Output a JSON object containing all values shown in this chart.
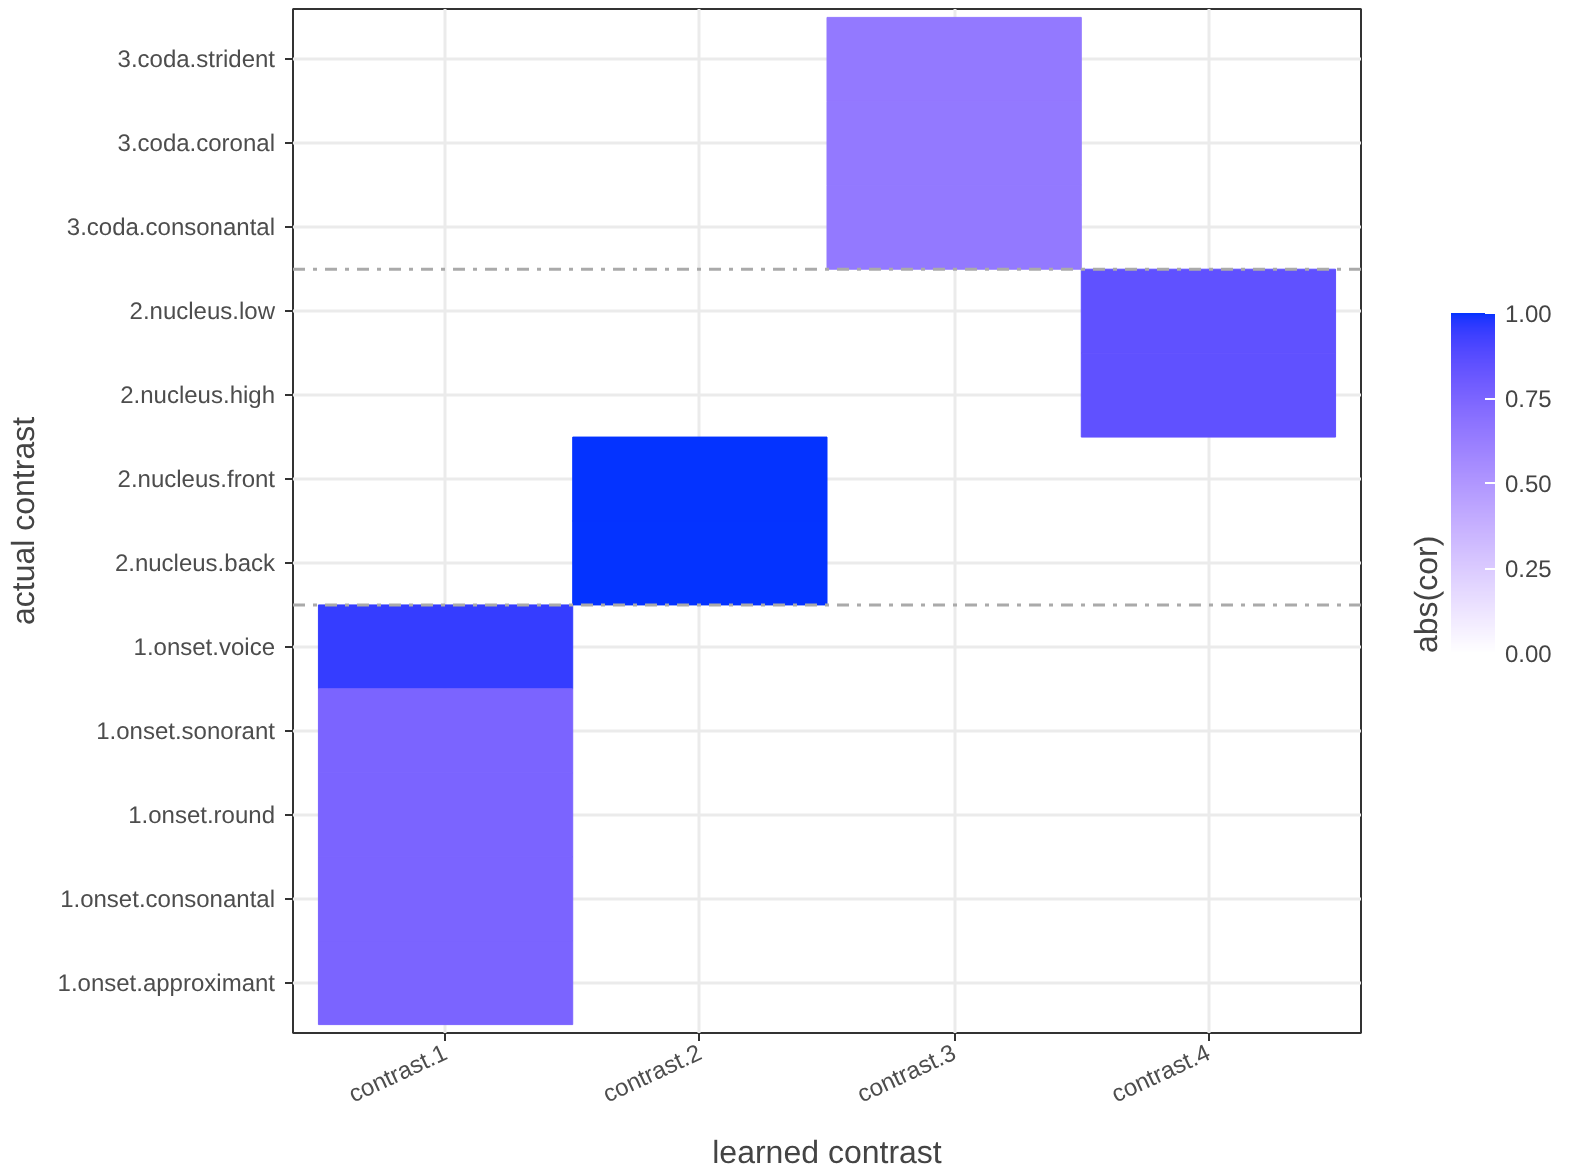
{
  "chart_data": {
    "type": "heatmap",
    "xlabel": "learned contrast",
    "ylabel": "actual contrast",
    "clabel": "abs(cor)",
    "categories": [
      "contrast.1",
      "contrast.2",
      "contrast.3",
      "contrast.4"
    ],
    "y_categories": [
      "3.coda.strident",
      "3.coda.coronal",
      "3.coda.consonantal",
      "2.nucleus.low",
      "2.nucleus.high",
      "2.nucleus.front",
      "2.nucleus.back",
      "1.onset.voice",
      "1.onset.sonorant",
      "1.onset.round",
      "1.onset.consonantal",
      "1.onset.approximant"
    ],
    "cells": [
      [
        null,
        null,
        0.65,
        null
      ],
      [
        null,
        null,
        0.65,
        null
      ],
      [
        null,
        null,
        0.65,
        null
      ],
      [
        null,
        null,
        null,
        0.85
      ],
      [
        null,
        null,
        null,
        0.85
      ],
      [
        null,
        1.0,
        null,
        null
      ],
      [
        null,
        1.0,
        null,
        null
      ],
      [
        0.95,
        null,
        null,
        null
      ],
      [
        0.75,
        null,
        null,
        null
      ],
      [
        0.75,
        null,
        null,
        null
      ],
      [
        0.75,
        null,
        null,
        null
      ],
      [
        0.75,
        null,
        null,
        null
      ]
    ],
    "clim": [
      0,
      1
    ],
    "cticks": [
      {
        "value": 0,
        "label": "0.00"
      },
      {
        "value": 0.25,
        "label": "0.25"
      },
      {
        "value": 0.5,
        "label": "0.50"
      },
      {
        "value": 0.75,
        "label": "0.75"
      },
      {
        "value": 1,
        "label": "1.00"
      }
    ],
    "grid": true
  }
}
